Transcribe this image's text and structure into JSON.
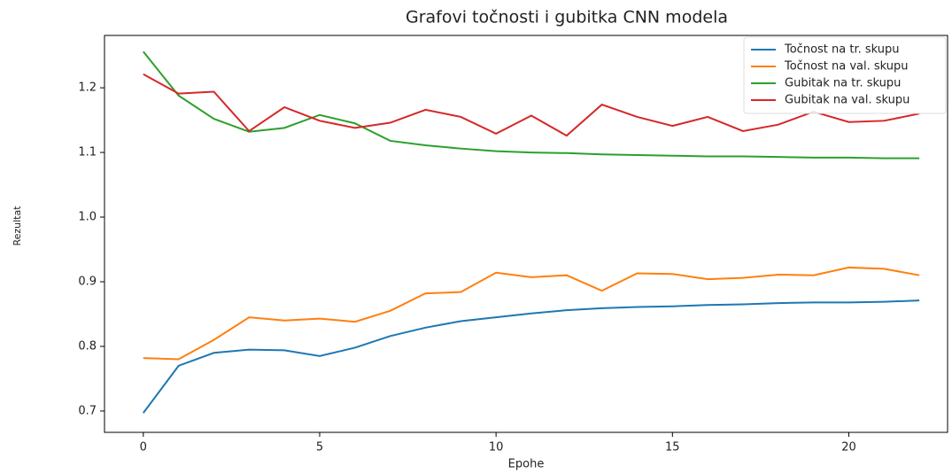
{
  "chart_data": {
    "type": "line",
    "title": "Grafovi točnosti i gubitka CNN modela",
    "xlabel": "Epohe",
    "ylabel": "Rezultat",
    "x": [
      0,
      1,
      2,
      3,
      4,
      5,
      6,
      7,
      8,
      9,
      10,
      11,
      12,
      13,
      14,
      15,
      16,
      17,
      18,
      19,
      20,
      21,
      22
    ],
    "series": [
      {
        "name": "Točnost na tr. skupu",
        "color": "#1f77b4",
        "values": [
          0.697,
          0.77,
          0.79,
          0.795,
          0.794,
          0.785,
          0.798,
          0.816,
          0.829,
          0.839,
          0.845,
          0.851,
          0.856,
          0.859,
          0.861,
          0.862,
          0.864,
          0.865,
          0.867,
          0.868,
          0.868,
          0.869,
          0.871
        ]
      },
      {
        "name": "Točnost na val. skupu",
        "color": "#ff7f0e",
        "values": [
          0.782,
          0.78,
          0.81,
          0.845,
          0.84,
          0.843,
          0.838,
          0.855,
          0.882,
          0.884,
          0.914,
          0.907,
          0.91,
          0.886,
          0.913,
          0.912,
          0.904,
          0.906,
          0.911,
          0.91,
          0.922,
          0.92,
          0.91
        ]
      },
      {
        "name": "Gubitak na tr. skupu",
        "color": "#2ca02c",
        "values": [
          1.256,
          1.188,
          1.152,
          1.132,
          1.138,
          1.158,
          1.145,
          1.118,
          1.111,
          1.106,
          1.102,
          1.1,
          1.099,
          1.097,
          1.096,
          1.095,
          1.094,
          1.094,
          1.093,
          1.092,
          1.092,
          1.091,
          1.091
        ]
      },
      {
        "name": "Gubitak na val. skupu",
        "color": "#d62728",
        "values": [
          1.221,
          1.191,
          1.194,
          1.133,
          1.17,
          1.149,
          1.138,
          1.146,
          1.166,
          1.155,
          1.129,
          1.157,
          1.126,
          1.174,
          1.155,
          1.141,
          1.155,
          1.133,
          1.143,
          1.163,
          1.147,
          1.149,
          1.16
        ]
      }
    ],
    "xlim": [
      -1.1,
      22.8
    ],
    "xticks": [
      0,
      5,
      10,
      15,
      20
    ],
    "ylim": [
      0.667,
      1.281
    ],
    "yticks": [
      0.7,
      0.8,
      0.9,
      {
        "value": 1,
        "label": "1.0"
      },
      1.1,
      1.2
    ],
    "legend": "upper right"
  }
}
